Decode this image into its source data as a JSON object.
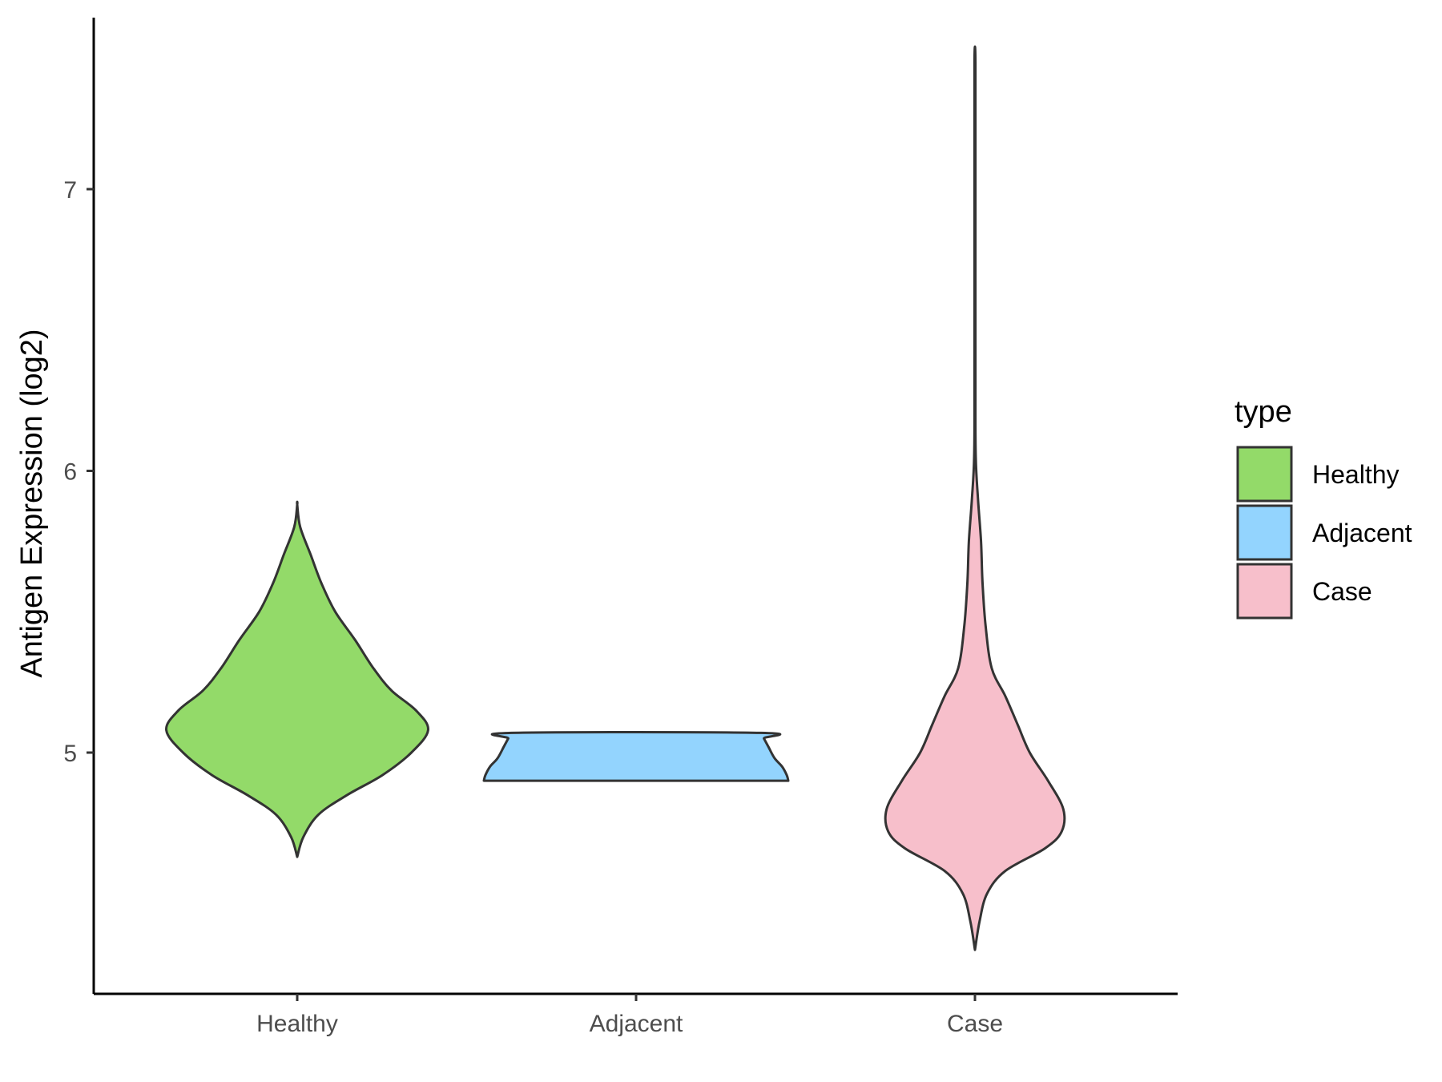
{
  "chart_data": {
    "type": "violin",
    "title": "",
    "xlabel": "",
    "ylabel": "Antigen Expression (log2)",
    "categories": [
      "Healthy",
      "Adjacent",
      "Case"
    ],
    "yticks": [
      5,
      6,
      7
    ],
    "ylim": [
      4.15,
      7.6
    ],
    "grid": false,
    "legend": {
      "title": "type",
      "position": "right",
      "items": [
        {
          "label": "Healthy",
          "color": "#93DA69"
        },
        {
          "label": "Adjacent",
          "color": "#93D4FE"
        },
        {
          "label": "Case",
          "color": "#F7BFCB"
        }
      ]
    },
    "series": [
      {
        "name": "Healthy",
        "color": "#93DA69",
        "profile": [
          [
            4.63,
            0.0
          ],
          [
            4.7,
            0.04
          ],
          [
            4.78,
            0.14
          ],
          [
            4.85,
            0.33
          ],
          [
            4.92,
            0.56
          ],
          [
            5.0,
            0.75
          ],
          [
            5.08,
            0.86
          ],
          [
            5.15,
            0.78
          ],
          [
            5.22,
            0.62
          ],
          [
            5.3,
            0.5
          ],
          [
            5.4,
            0.38
          ],
          [
            5.5,
            0.25
          ],
          [
            5.6,
            0.16
          ],
          [
            5.7,
            0.09
          ],
          [
            5.8,
            0.02
          ],
          [
            5.88,
            0.0
          ]
        ]
      },
      {
        "name": "Adjacent",
        "color": "#93D4FE",
        "profile": [
          [
            4.9,
            1.0
          ],
          [
            4.92,
            0.99
          ],
          [
            4.95,
            0.96
          ],
          [
            4.98,
            0.91
          ],
          [
            5.02,
            0.87
          ],
          [
            5.05,
            0.84
          ],
          [
            5.07,
            0.82
          ]
        ]
      },
      {
        "name": "Case",
        "color": "#F7BFCB",
        "profile": [
          [
            4.3,
            0.0
          ],
          [
            4.4,
            0.03
          ],
          [
            4.5,
            0.08
          ],
          [
            4.58,
            0.2
          ],
          [
            4.66,
            0.46
          ],
          [
            4.72,
            0.57
          ],
          [
            4.8,
            0.58
          ],
          [
            4.9,
            0.48
          ],
          [
            5.0,
            0.36
          ],
          [
            5.1,
            0.28
          ],
          [
            5.2,
            0.2
          ],
          [
            5.3,
            0.11
          ],
          [
            5.45,
            0.07
          ],
          [
            5.6,
            0.05
          ],
          [
            5.75,
            0.04
          ],
          [
            5.9,
            0.02
          ],
          [
            6.05,
            0.005
          ],
          [
            6.3,
            0.003
          ],
          [
            7.0,
            0.003
          ],
          [
            7.45,
            0.003
          ]
        ]
      }
    ]
  }
}
